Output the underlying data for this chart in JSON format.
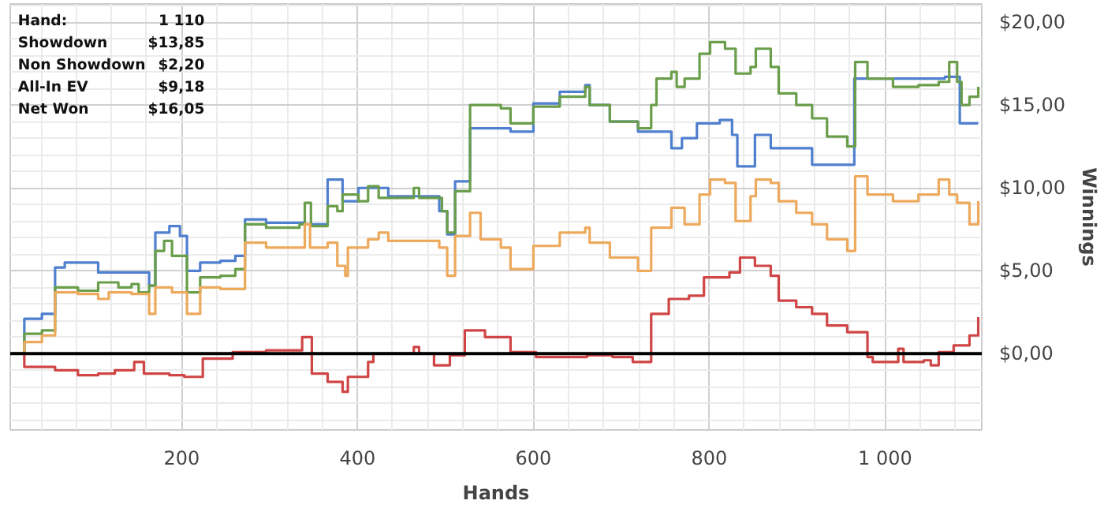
{
  "chart_data": {
    "type": "step",
    "xlabel": "Hands",
    "ylabel": "Winnings",
    "annotations": [
      "Hand:",
      "1 110",
      "Showdown",
      "$13,85",
      "Non Showdown",
      "$2,20",
      "All-In EV",
      "$9,18",
      "Net Won",
      "$16,05"
    ],
    "xlim": [
      5,
      1110
    ],
    "ylim": [
      -4.6,
      21.1
    ],
    "xticks": [
      200,
      400,
      600,
      800,
      {
        "value": 1000,
        "label": "1 000"
      }
    ],
    "yticks": [
      {
        "value": 0,
        "label": "$0,00"
      },
      {
        "value": 5,
        "label": "$5,00"
      },
      {
        "value": 10,
        "label": "$10,00"
      },
      {
        "value": 15,
        "label": "$15,00"
      },
      {
        "value": 20,
        "label": "$20,00"
      }
    ],
    "grid": true,
    "ref_lines": [
      {
        "axis": "y",
        "value": 0,
        "color": "#000000"
      }
    ],
    "series": [
      {
        "color": "#4f7fcf",
        "x": [
          7,
          21,
          41,
          56,
          67,
          105,
          163,
          170,
          186,
          198,
          206,
          221,
          244,
          261,
          272,
          296,
          340,
          366,
          383,
          401,
          435,
          493,
          502,
          511,
          528,
          574,
          600,
          630,
          659,
          664,
          687,
          719,
          757,
          769,
          786,
          812,
          826,
          832,
          852,
          870,
          917,
          965,
          1068,
          1085,
          1106
        ],
        "values": [
          0,
          2.1,
          2.4,
          5.2,
          5.5,
          4.9,
          4.1,
          7.3,
          7.7,
          7.1,
          5.0,
          5.5,
          5.6,
          5.9,
          8.1,
          7.9,
          7.8,
          10.5,
          9.2,
          10.0,
          9.5,
          8.6,
          7.2,
          10.4,
          13.6,
          13.4,
          15.1,
          15.8,
          16.2,
          15.0,
          14.0,
          13.4,
          12.4,
          13.0,
          13.9,
          14.1,
          13.2,
          11.3,
          13.2,
          12.4,
          11.4,
          16.6,
          16.7,
          13.9,
          13.9
        ]
      },
      {
        "color": "#6a9e4a",
        "x": [
          7,
          21,
          41,
          56,
          82,
          105,
          128,
          143,
          151,
          163,
          170,
          180,
          189,
          206,
          221,
          244,
          261,
          272,
          296,
          334,
          340,
          347,
          366,
          377,
          383,
          401,
          412,
          424,
          458,
          464,
          470,
          493,
          496,
          502,
          511,
          528,
          563,
          574,
          600,
          630,
          659,
          664,
          687,
          719,
          734,
          740,
          757,
          763,
          772,
          789,
          801,
          818,
          830,
          847,
          853,
          870,
          879,
          899,
          917,
          934,
          957,
          966,
          980,
          1009,
          1038,
          1061,
          1073,
          1082,
          1087,
          1096,
          1106
        ],
        "values": [
          0,
          1.2,
          1.4,
          4.0,
          3.8,
          4.3,
          4.0,
          4.2,
          3.7,
          4.1,
          6.2,
          6.8,
          5.9,
          3.7,
          4.6,
          4.7,
          5.1,
          7.8,
          7.6,
          7.8,
          9.1,
          7.7,
          8.9,
          8.6,
          9.6,
          9.2,
          10.1,
          9.4,
          9.4,
          10.0,
          9.4,
          9.4,
          8.6,
          7.3,
          9.8,
          15.0,
          14.8,
          13.9,
          14.9,
          15.5,
          16.1,
          15.0,
          14.0,
          13.6,
          15.0,
          16.6,
          17.0,
          16.1,
          16.6,
          18.1,
          18.8,
          18.4,
          16.9,
          17.3,
          18.4,
          17.3,
          15.7,
          15.0,
          14.2,
          13.1,
          12.5,
          17.6,
          16.6,
          16.1,
          16.2,
          16.4,
          17.6,
          16.4,
          15.0,
          15.5,
          16.1
        ]
      },
      {
        "color": "#eda95c",
        "x": [
          7,
          21,
          41,
          56,
          82,
          105,
          117,
          143,
          163,
          170,
          189,
          206,
          221,
          244,
          272,
          296,
          340,
          346,
          366,
          377,
          386,
          389,
          412,
          424,
          435,
          493,
          502,
          511,
          528,
          540,
          563,
          574,
          600,
          630,
          659,
          664,
          687,
          719,
          734,
          757,
          772,
          789,
          801,
          818,
          830,
          847,
          853,
          870,
          879,
          899,
          917,
          934,
          957,
          966,
          980,
          1009,
          1038,
          1061,
          1073,
          1082,
          1096,
          1106
        ],
        "values": [
          0,
          0.7,
          1.1,
          3.7,
          3.6,
          3.3,
          3.7,
          3.6,
          2.4,
          4.0,
          3.7,
          2.4,
          4.0,
          3.9,
          6.7,
          6.4,
          7.8,
          6.4,
          6.7,
          5.3,
          4.7,
          6.4,
          6.9,
          7.3,
          6.8,
          6.4,
          4.7,
          7.1,
          8.5,
          6.9,
          6.4,
          5.1,
          6.5,
          7.3,
          7.6,
          6.7,
          5.8,
          5.0,
          7.6,
          8.8,
          7.8,
          9.6,
          10.5,
          10.3,
          8.0,
          9.5,
          10.5,
          10.3,
          9.2,
          8.5,
          7.8,
          6.9,
          6.2,
          10.7,
          9.6,
          9.2,
          9.6,
          10.5,
          9.6,
          9.1,
          7.8,
          9.2
        ]
      },
      {
        "color": "#d04545",
        "x": [
          7,
          21,
          56,
          82,
          105,
          124,
          146,
          157,
          186,
          203,
          224,
          258,
          296,
          337,
          348,
          366,
          383,
          389,
          412,
          418,
          464,
          470,
          487,
          505,
          522,
          545,
          574,
          603,
          661,
          690,
          713,
          734,
          754,
          777,
          794,
          823,
          835,
          852,
          870,
          879,
          899,
          917,
          934,
          957,
          980,
          986,
          1015,
          1021,
          1044,
          1052,
          1061,
          1078,
          1096,
          1106
        ],
        "values": [
          0,
          -0.8,
          -1.0,
          -1.3,
          -1.2,
          -1.0,
          -0.5,
          -1.2,
          -1.3,
          -1.4,
          -0.3,
          0.1,
          0.2,
          1.0,
          -1.2,
          -1.7,
          -2.3,
          -1.4,
          -0.5,
          0,
          0.4,
          0,
          -0.7,
          -0.1,
          1.4,
          1.0,
          0.1,
          -0.2,
          -0.1,
          -0.2,
          -0.5,
          2.4,
          3.3,
          3.5,
          4.6,
          4.9,
          5.8,
          5.3,
          4.7,
          3.2,
          2.8,
          2.4,
          1.7,
          1.3,
          -0.2,
          -0.5,
          0.3,
          -0.5,
          -0.4,
          -0.7,
          0.1,
          0.5,
          1.1,
          2.2
        ]
      }
    ]
  }
}
